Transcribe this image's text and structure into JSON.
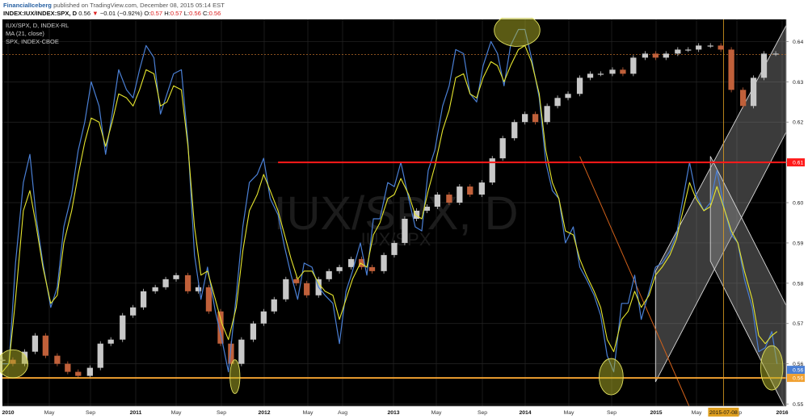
{
  "header": {
    "brand": "FinancialIceberg",
    "published": "published on TradingView.com, December 08, 2015 05:14 EST",
    "symbol": "INDEX:IUX/INDEX:SPX, D",
    "last": "0.56",
    "change_arrow": "▼",
    "change": "−0.01 (−0.92%)",
    "o_label": "O:",
    "o_val": "0.57",
    "h_label": "H:",
    "h_val": "0.57",
    "l_label": "L:",
    "l_val": "0.56",
    "c_label": "C:",
    "c_val": "0.56"
  },
  "legend": [
    "IUX/SPX, D, INDEX-RL",
    "MA (21, close)",
    "SPX, INDEX-CBOE"
  ],
  "watermark": {
    "main": "IUX/SPX, D",
    "sub": "IUX/SPX"
  },
  "colors": {
    "background": "#000000",
    "ratio_line": "#4a7fd4",
    "ma_line": "#e6e62e",
    "spx_up": "#c8c8c8",
    "spx_down": "#c0603a",
    "resistance": "#ff1a1a",
    "support": "#f0a030",
    "channel_fill": "#9a9a9a",
    "ellipse_fill": "#b4b428",
    "trend_line": "#d0601a",
    "dashed_level": "#b86a28",
    "crosshair": "#e0a020",
    "last_badge": "#4a7fd4"
  },
  "chart_data": {
    "type": "line",
    "title": "IUX/SPX, D, INDEX-RL",
    "x_ticks": [
      "2010",
      "May",
      "Sep",
      "2011",
      "May",
      "Sep",
      "2012",
      "May",
      "Aug",
      "2013",
      "May",
      "Sep",
      "2014",
      "May",
      "Sep",
      "2015",
      "May",
      "Sep",
      "2016"
    ],
    "y_ticks": [
      "0.64",
      "0.63",
      "0.62",
      "0.61",
      "0.60",
      "0.59",
      "0.58",
      "0.57",
      "0.56",
      "0.55"
    ],
    "ylim": [
      0.5495,
      0.6455
    ],
    "x_range": [
      2010.0,
      2016.0
    ],
    "series": [
      {
        "name": "IUX/SPX, D, INDEX-RL",
        "style": "line",
        "x": [
          2010.0,
          2010.05,
          2010.1,
          2010.16,
          2010.21,
          2010.26,
          2010.31,
          2010.37,
          2010.42,
          2010.47,
          2010.53,
          2010.58,
          2010.63,
          2010.68,
          2010.74,
          2010.79,
          2010.84,
          2010.89,
          2010.95,
          2011.0,
          2011.05,
          2011.1,
          2011.16,
          2011.21,
          2011.26,
          2011.31,
          2011.37,
          2011.42,
          2011.47,
          2011.52,
          2011.57,
          2011.63,
          2011.68,
          2011.73,
          2011.79,
          2011.84,
          2011.89,
          2011.95,
          2012.0,
          2012.05,
          2012.11,
          2012.16,
          2012.21,
          2012.26,
          2012.31,
          2012.37,
          2012.42,
          2012.47,
          2012.53,
          2012.58,
          2012.63,
          2012.68,
          2012.74,
          2012.79,
          2012.84,
          2012.89,
          2012.95,
          2013.0,
          2013.05,
          2013.11,
          2013.16,
          2013.21,
          2013.26,
          2013.31,
          2013.37,
          2013.42,
          2013.47,
          2013.53,
          2013.58,
          2013.63,
          2013.68,
          2013.74,
          2013.79,
          2013.84,
          2013.89,
          2013.95,
          2014.0,
          2014.05,
          2014.11,
          2014.16,
          2014.21,
          2014.26,
          2014.31,
          2014.37,
          2014.42,
          2014.47,
          2014.53,
          2014.58,
          2014.63,
          2014.68,
          2014.74,
          2014.79,
          2014.84,
          2014.89,
          2014.95,
          2015.0,
          2015.05,
          2015.11,
          2015.16,
          2015.21,
          2015.26,
          2015.31,
          2015.37,
          2015.42,
          2015.47,
          2015.53,
          2015.58,
          2015.63,
          2015.68,
          2015.74,
          2015.79,
          2015.84,
          2015.89,
          2015.93
        ],
        "y": [
          0.56,
          0.56,
          0.585,
          0.605,
          0.612,
          0.596,
          0.585,
          0.574,
          0.579,
          0.594,
          0.602,
          0.613,
          0.62,
          0.63,
          0.624,
          0.612,
          0.622,
          0.633,
          0.628,
          0.626,
          0.633,
          0.639,
          0.636,
          0.622,
          0.627,
          0.632,
          0.633,
          0.615,
          0.587,
          0.576,
          0.584,
          0.573,
          0.566,
          0.558,
          0.577,
          0.594,
          0.605,
          0.607,
          0.611,
          0.601,
          0.597,
          0.589,
          0.582,
          0.576,
          0.585,
          0.584,
          0.579,
          0.577,
          0.575,
          0.565,
          0.578,
          0.583,
          0.59,
          0.582,
          0.596,
          0.596,
          0.605,
          0.604,
          0.61,
          0.601,
          0.594,
          0.593,
          0.608,
          0.613,
          0.624,
          0.629,
          0.638,
          0.637,
          0.627,
          0.625,
          0.634,
          0.64,
          0.637,
          0.629,
          0.639,
          0.643,
          0.643,
          0.636,
          0.626,
          0.61,
          0.603,
          0.601,
          0.59,
          0.594,
          0.584,
          0.581,
          0.577,
          0.572,
          0.562,
          0.558,
          0.575,
          0.575,
          0.582,
          0.571,
          0.578,
          0.584,
          0.585,
          0.588,
          0.592,
          0.601,
          0.61,
          0.602,
          0.598,
          0.6,
          0.608,
          0.598,
          0.592,
          0.59,
          0.581,
          0.574,
          0.563,
          0.564,
          0.568,
          0.56
        ]
      },
      {
        "name": "MA (21, close)",
        "style": "line",
        "x": [
          2010.0,
          2010.05,
          2010.1,
          2010.16,
          2010.21,
          2010.26,
          2010.31,
          2010.37,
          2010.42,
          2010.47,
          2010.53,
          2010.58,
          2010.63,
          2010.68,
          2010.74,
          2010.79,
          2010.84,
          2010.89,
          2010.95,
          2011.0,
          2011.05,
          2011.1,
          2011.16,
          2011.21,
          2011.26,
          2011.31,
          2011.37,
          2011.42,
          2011.47,
          2011.52,
          2011.57,
          2011.63,
          2011.68,
          2011.73,
          2011.79,
          2011.84,
          2011.89,
          2011.95,
          2012.0,
          2012.05,
          2012.11,
          2012.16,
          2012.21,
          2012.26,
          2012.31,
          2012.37,
          2012.42,
          2012.47,
          2012.53,
          2012.58,
          2012.63,
          2012.68,
          2012.74,
          2012.79,
          2012.84,
          2012.89,
          2012.95,
          2013.0,
          2013.05,
          2013.11,
          2013.16,
          2013.21,
          2013.26,
          2013.31,
          2013.37,
          2013.42,
          2013.47,
          2013.53,
          2013.58,
          2013.63,
          2013.68,
          2013.74,
          2013.79,
          2013.84,
          2013.89,
          2013.95,
          2014.0,
          2014.05,
          2014.11,
          2014.16,
          2014.21,
          2014.26,
          2014.31,
          2014.37,
          2014.42,
          2014.47,
          2014.53,
          2014.58,
          2014.63,
          2014.68,
          2014.74,
          2014.79,
          2014.84,
          2014.89,
          2014.95,
          2015.0,
          2015.05,
          2015.11,
          2015.16,
          2015.21,
          2015.26,
          2015.31,
          2015.37,
          2015.42,
          2015.47,
          2015.53,
          2015.58,
          2015.63,
          2015.68,
          2015.74,
          2015.79,
          2015.84,
          2015.89,
          2015.93
        ],
        "y": [
          0.558,
          0.56,
          0.576,
          0.598,
          0.603,
          0.594,
          0.584,
          0.575,
          0.577,
          0.59,
          0.598,
          0.607,
          0.615,
          0.621,
          0.62,
          0.614,
          0.62,
          0.627,
          0.626,
          0.624,
          0.628,
          0.633,
          0.632,
          0.624,
          0.625,
          0.629,
          0.628,
          0.614,
          0.594,
          0.582,
          0.583,
          0.576,
          0.57,
          0.566,
          0.574,
          0.588,
          0.598,
          0.602,
          0.607,
          0.603,
          0.598,
          0.592,
          0.586,
          0.581,
          0.583,
          0.583,
          0.58,
          0.578,
          0.577,
          0.571,
          0.576,
          0.581,
          0.585,
          0.584,
          0.592,
          0.595,
          0.601,
          0.602,
          0.606,
          0.602,
          0.597,
          0.596,
          0.603,
          0.609,
          0.618,
          0.623,
          0.631,
          0.632,
          0.627,
          0.626,
          0.631,
          0.635,
          0.634,
          0.63,
          0.634,
          0.638,
          0.639,
          0.635,
          0.627,
          0.613,
          0.605,
          0.601,
          0.593,
          0.592,
          0.586,
          0.582,
          0.578,
          0.574,
          0.566,
          0.563,
          0.571,
          0.573,
          0.578,
          0.574,
          0.577,
          0.582,
          0.584,
          0.587,
          0.591,
          0.598,
          0.605,
          0.601,
          0.598,
          0.599,
          0.604,
          0.598,
          0.593,
          0.59,
          0.583,
          0.576,
          0.567,
          0.565,
          0.567,
          0.568
        ]
      },
      {
        "name": "SPX, INDEX-CBOE",
        "style": "candles",
        "x": [
          2010.0,
          2010.08,
          2010.17,
          2010.25,
          2010.33,
          2010.42,
          2010.5,
          2010.58,
          2010.67,
          2010.75,
          2010.83,
          2010.92,
          2011.0,
          2011.08,
          2011.17,
          2011.25,
          2011.33,
          2011.42,
          2011.5,
          2011.58,
          2011.67,
          2011.75,
          2011.83,
          2011.92,
          2012.0,
          2012.08,
          2012.17,
          2012.25,
          2012.33,
          2012.42,
          2012.5,
          2012.58,
          2012.67,
          2012.75,
          2012.83,
          2012.92,
          2013.0,
          2013.08,
          2013.17,
          2013.25,
          2013.33,
          2013.42,
          2013.5,
          2013.58,
          2013.67,
          2013.75,
          2013.83,
          2013.92,
          2014.0,
          2014.08,
          2014.17,
          2014.25,
          2014.33,
          2014.42,
          2014.5,
          2014.58,
          2014.67,
          2014.75,
          2014.83,
          2014.92,
          2015.0,
          2015.08,
          2015.17,
          2015.25,
          2015.33,
          2015.42,
          2015.5,
          2015.58,
          2015.67,
          2015.75,
          2015.83,
          2015.92
        ],
        "y": [
          0.561,
          0.56,
          0.563,
          0.567,
          0.562,
          0.56,
          0.558,
          0.557,
          0.559,
          0.565,
          0.566,
          0.572,
          0.574,
          0.578,
          0.579,
          0.581,
          0.582,
          0.578,
          0.579,
          0.573,
          0.565,
          0.56,
          0.566,
          0.57,
          0.573,
          0.576,
          0.581,
          0.58,
          0.577,
          0.581,
          0.583,
          0.584,
          0.586,
          0.584,
          0.583,
          0.587,
          0.59,
          0.596,
          0.598,
          0.599,
          0.602,
          0.6,
          0.604,
          0.602,
          0.605,
          0.611,
          0.616,
          0.62,
          0.622,
          0.62,
          0.624,
          0.626,
          0.627,
          0.631,
          0.632,
          0.632,
          0.633,
          0.632,
          0.636,
          0.637,
          0.636,
          0.637,
          0.638,
          0.638,
          0.639,
          0.639,
          0.638,
          0.628,
          0.624,
          0.631,
          0.637,
          0.637
        ]
      }
    ],
    "annotations": {
      "resistance": {
        "y": 0.61,
        "x_from": 2012.11,
        "label": "0.61"
      },
      "support": {
        "y": 0.5565,
        "label": "0.56"
      },
      "last_price": {
        "y": 0.5585,
        "label": "0.56"
      },
      "dashed_level": {
        "y": 0.6368
      },
      "channels": [
        {
          "poly": [
            [
              2015.0,
              0.583
            ],
            [
              2016.0,
              0.644
            ],
            [
              2016.0,
              0.6175
            ],
            [
              2015.0,
              0.5555
            ]
          ]
        },
        {
          "poly": [
            [
              2015.42,
              0.6115
            ],
            [
              2016.0,
              0.5745
            ],
            [
              2016.0,
              0.5485
            ],
            [
              2015.42,
              0.5855
            ]
          ]
        }
      ],
      "trend_line": [
        [
          2014.42,
          0.6115
        ],
        [
          2015.27,
          0.5485
        ]
      ],
      "ellipses": [
        {
          "cx": 2010.08,
          "cy": 0.56,
          "rx": 0.115,
          "ry": 0.0035
        },
        {
          "cx": 2011.78,
          "cy": 0.5568,
          "rx": 0.038,
          "ry": 0.0042
        },
        {
          "cx": 2013.94,
          "cy": 0.6428,
          "rx": 0.175,
          "ry": 0.004
        },
        {
          "cx": 2014.66,
          "cy": 0.5568,
          "rx": 0.092,
          "ry": 0.0045
        },
        {
          "cx": 2015.89,
          "cy": 0.559,
          "rx": 0.085,
          "ry": 0.0055
        }
      ],
      "crosshair": {
        "x": 2015.52,
        "label": "2015-07-08"
      }
    },
    "grid": true,
    "legend_position": "top-left",
    "y_axis_position": "right"
  }
}
